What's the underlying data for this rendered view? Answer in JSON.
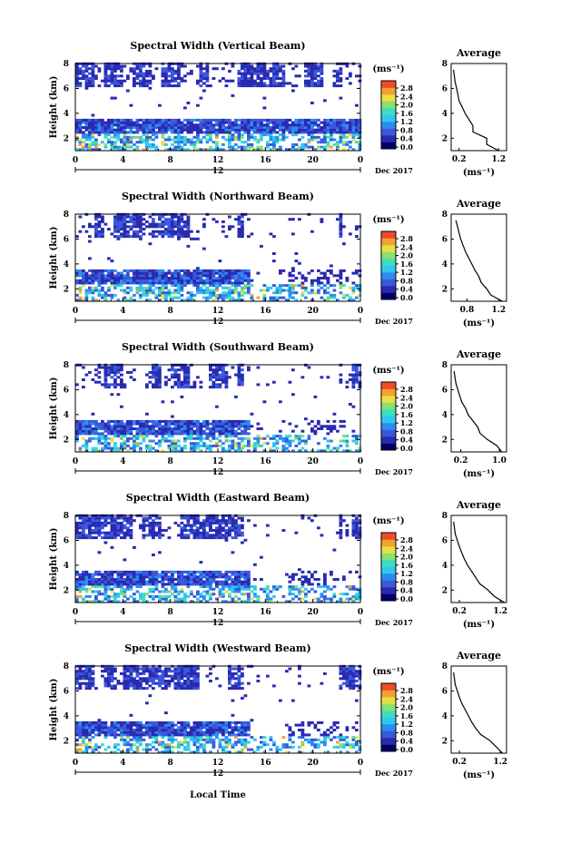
{
  "chart_data": {
    "type": "heatmap",
    "date_label": "Dec 2017",
    "xlabel": "Local Time",
    "ylabel": "Height (km)",
    "x_ticks": [
      "0",
      "4",
      "8",
      "12",
      "16",
      "20",
      "0"
    ],
    "x_range": [
      0,
      24
    ],
    "day_marker": "12",
    "y_ticks": [
      "2",
      "4",
      "6",
      "8"
    ],
    "y_range": [
      1,
      8
    ],
    "colorbar": {
      "unit": "(ms⁻¹)",
      "ticks": [
        "0.0",
        "0.4",
        "0.8",
        "1.2",
        "1.6",
        "2.0",
        "2.4",
        "2.8"
      ],
      "colors": [
        "#000066",
        "#2a2ab0",
        "#3a58dc",
        "#2b8cf0",
        "#2ec7f2",
        "#3bdfc0",
        "#8be070",
        "#e8e040",
        "#f6a030",
        "#f04a28"
      ]
    },
    "avg_title": "Average",
    "avg_xlabel": "(ms⁻¹)",
    "panels": [
      {
        "title": "Spectral Width (Vertical Beam)",
        "avg_x_ticks": [
          "0.2",
          "1.2"
        ],
        "avg_x_range": [
          0.0,
          1.4
        ],
        "avg_profile": {
          "height": [
            1.0,
            1.5,
            2.0,
            2.5,
            3.0,
            3.5,
            4.0,
            4.5,
            5.0,
            5.5,
            6.0,
            6.5,
            7.0,
            7.5
          ],
          "width": [
            1.2,
            0.9,
            0.9,
            0.55,
            0.55,
            0.45,
            0.35,
            0.28,
            0.2,
            0.17,
            0.14,
            0.1,
            0.08,
            0.06
          ]
        }
      },
      {
        "title": "Spectral Width (Northward Beam)",
        "avg_x_ticks": [
          "0.8",
          "1.2"
        ],
        "avg_x_range": [
          0.6,
          1.3
        ],
        "avg_profile": {
          "height": [
            1.0,
            1.5,
            2.0,
            2.5,
            3.0,
            3.5,
            4.0,
            4.5,
            5.0,
            5.5,
            6.0,
            6.5,
            7.0,
            7.5
          ],
          "width": [
            1.25,
            1.1,
            1.05,
            0.98,
            0.95,
            0.9,
            0.86,
            0.82,
            0.78,
            0.75,
            0.72,
            0.7,
            0.68,
            0.66
          ]
        }
      },
      {
        "title": "Spectral Width (Southward Beam)",
        "avg_x_ticks": [
          "0.2",
          "1.0"
        ],
        "avg_x_range": [
          0.0,
          1.15
        ],
        "avg_profile": {
          "height": [
            1.0,
            1.5,
            2.0,
            2.5,
            3.0,
            3.5,
            4.0,
            4.5,
            5.0,
            5.5,
            6.0,
            6.5,
            7.0,
            7.5
          ],
          "width": [
            1.05,
            0.95,
            0.75,
            0.6,
            0.55,
            0.45,
            0.35,
            0.3,
            0.22,
            0.18,
            0.14,
            0.1,
            0.08,
            0.06
          ]
        }
      },
      {
        "title": "Spectral Width (Eastward Beam)",
        "avg_x_ticks": [
          "0.2",
          "1.2"
        ],
        "avg_x_range": [
          0.0,
          1.35
        ],
        "avg_profile": {
          "height": [
            1.0,
            1.5,
            2.0,
            2.5,
            3.0,
            3.5,
            4.0,
            4.5,
            5.0,
            5.5,
            6.0,
            6.5,
            7.0,
            7.5
          ],
          "width": [
            1.3,
            1.05,
            0.9,
            0.7,
            0.6,
            0.5,
            0.4,
            0.32,
            0.26,
            0.2,
            0.15,
            0.1,
            0.08,
            0.06
          ]
        }
      },
      {
        "title": "Spectral Width (Westward Beam)",
        "avg_x_ticks": [
          "0.2",
          "1.2"
        ],
        "avg_x_range": [
          0.0,
          1.35
        ],
        "avg_profile": {
          "height": [
            1.0,
            1.5,
            2.0,
            2.5,
            3.0,
            3.5,
            4.0,
            4.5,
            5.0,
            5.5,
            6.0,
            6.5,
            7.0,
            7.5
          ],
          "width": [
            1.25,
            1.1,
            0.95,
            0.72,
            0.6,
            0.5,
            0.42,
            0.34,
            0.26,
            0.2,
            0.15,
            0.1,
            0.08,
            0.06
          ]
        }
      }
    ]
  }
}
